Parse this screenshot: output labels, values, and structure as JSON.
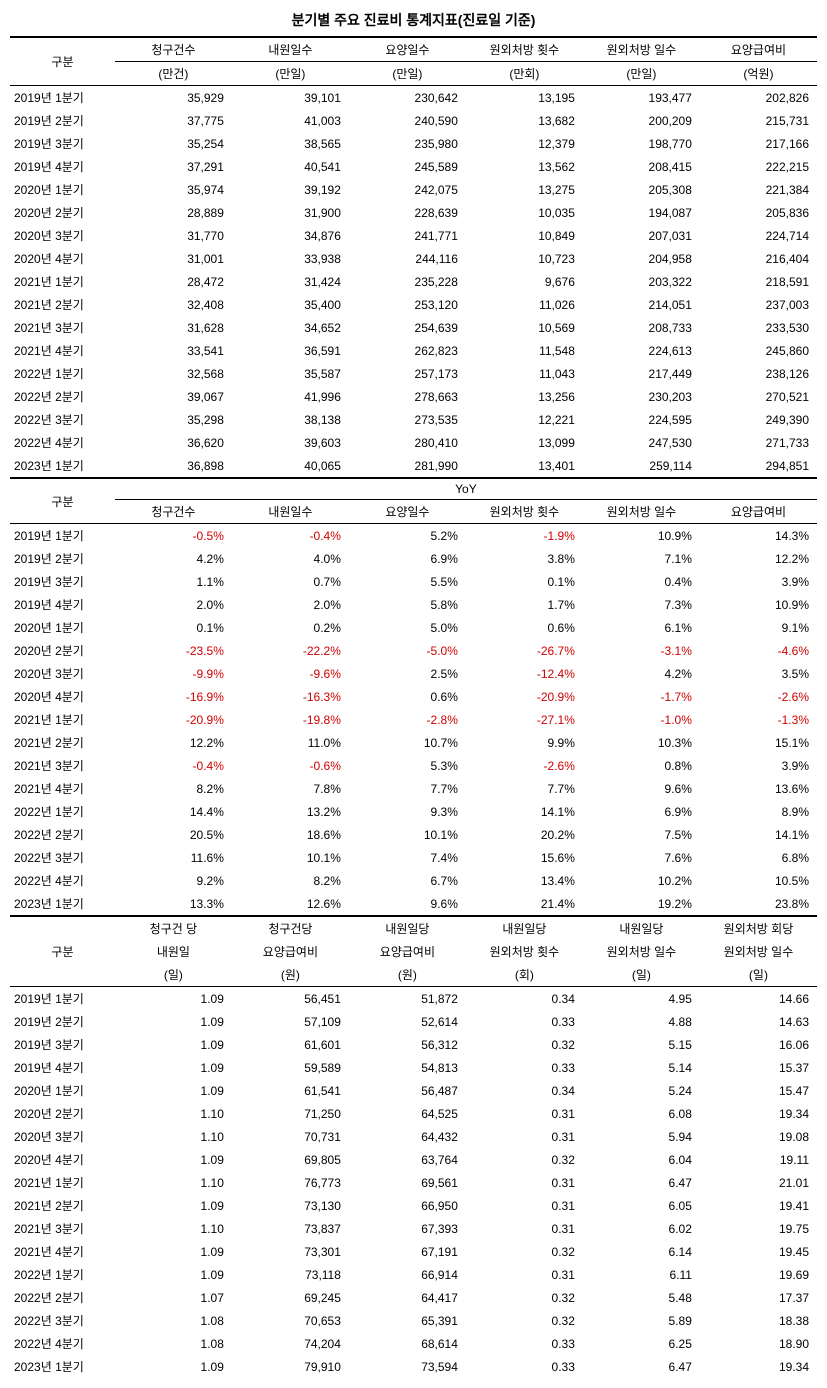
{
  "title": "분기별 주요 진료비 통계지표(진료일 기준)",
  "periods": [
    "2019년 1분기",
    "2019년 2분기",
    "2019년 3분기",
    "2019년 4분기",
    "2020년 1분기",
    "2020년 2분기",
    "2020년 3분기",
    "2020년 4분기",
    "2021년 1분기",
    "2021년 2분기",
    "2021년 3분기",
    "2021년 4분기",
    "2022년 1분기",
    "2022년 2분기",
    "2022년 3분기",
    "2022년 4분기",
    "2023년 1분기"
  ],
  "sec1": {
    "label": "구분",
    "cols": [
      [
        "청구건수",
        "(만건)"
      ],
      [
        "내원일수",
        "(만일)"
      ],
      [
        "요양일수",
        "(만일)"
      ],
      [
        "원외처방 횟수",
        "(만회)"
      ],
      [
        "원외처방 일수",
        "(만일)"
      ],
      [
        "요양급여비",
        "(억원)"
      ]
    ],
    "rows": [
      [
        "35,929",
        "39,101",
        "230,642",
        "13,195",
        "193,477",
        "202,826"
      ],
      [
        "37,775",
        "41,003",
        "240,590",
        "13,682",
        "200,209",
        "215,731"
      ],
      [
        "35,254",
        "38,565",
        "235,980",
        "12,379",
        "198,770",
        "217,166"
      ],
      [
        "37,291",
        "40,541",
        "245,589",
        "13,562",
        "208,415",
        "222,215"
      ],
      [
        "35,974",
        "39,192",
        "242,075",
        "13,275",
        "205,308",
        "221,384"
      ],
      [
        "28,889",
        "31,900",
        "228,639",
        "10,035",
        "194,087",
        "205,836"
      ],
      [
        "31,770",
        "34,876",
        "241,771",
        "10,849",
        "207,031",
        "224,714"
      ],
      [
        "31,001",
        "33,938",
        "244,116",
        "10,723",
        "204,958",
        "216,404"
      ],
      [
        "28,472",
        "31,424",
        "235,228",
        "9,676",
        "203,322",
        "218,591"
      ],
      [
        "32,408",
        "35,400",
        "253,120",
        "11,026",
        "214,051",
        "237,003"
      ],
      [
        "31,628",
        "34,652",
        "254,639",
        "10,569",
        "208,733",
        "233,530"
      ],
      [
        "33,541",
        "36,591",
        "262,823",
        "11,548",
        "224,613",
        "245,860"
      ],
      [
        "32,568",
        "35,587",
        "257,173",
        "11,043",
        "217,449",
        "238,126"
      ],
      [
        "39,067",
        "41,996",
        "278,663",
        "13,256",
        "230,203",
        "270,521"
      ],
      [
        "35,298",
        "38,138",
        "273,535",
        "12,221",
        "224,595",
        "249,390"
      ],
      [
        "36,620",
        "39,603",
        "280,410",
        "13,099",
        "247,530",
        "271,733"
      ],
      [
        "36,898",
        "40,065",
        "281,990",
        "13,401",
        "259,114",
        "294,851"
      ]
    ]
  },
  "sec2": {
    "label": "구분",
    "span_label": "YoY",
    "cols": [
      "청구건수",
      "내원일수",
      "요양일수",
      "원외처방 횟수",
      "원외처방 일수",
      "요양급여비"
    ],
    "rows": [
      [
        [
          "-0.5%",
          1
        ],
        [
          "-0.4%",
          1
        ],
        [
          "5.2%",
          0
        ],
        [
          "-1.9%",
          1
        ],
        [
          "10.9%",
          0
        ],
        [
          "14.3%",
          0
        ]
      ],
      [
        [
          "4.2%",
          0
        ],
        [
          "4.0%",
          0
        ],
        [
          "6.9%",
          0
        ],
        [
          "3.8%",
          0
        ],
        [
          "7.1%",
          0
        ],
        [
          "12.2%",
          0
        ]
      ],
      [
        [
          "1.1%",
          0
        ],
        [
          "0.7%",
          0
        ],
        [
          "5.5%",
          0
        ],
        [
          "0.1%",
          0
        ],
        [
          "0.4%",
          0
        ],
        [
          "3.9%",
          0
        ]
      ],
      [
        [
          "2.0%",
          0
        ],
        [
          "2.0%",
          0
        ],
        [
          "5.8%",
          0
        ],
        [
          "1.7%",
          0
        ],
        [
          "7.3%",
          0
        ],
        [
          "10.9%",
          0
        ]
      ],
      [
        [
          "0.1%",
          0
        ],
        [
          "0.2%",
          0
        ],
        [
          "5.0%",
          0
        ],
        [
          "0.6%",
          0
        ],
        [
          "6.1%",
          0
        ],
        [
          "9.1%",
          0
        ]
      ],
      [
        [
          "-23.5%",
          1
        ],
        [
          "-22.2%",
          1
        ],
        [
          "-5.0%",
          1
        ],
        [
          "-26.7%",
          1
        ],
        [
          "-3.1%",
          1
        ],
        [
          "-4.6%",
          1
        ]
      ],
      [
        [
          "-9.9%",
          1
        ],
        [
          "-9.6%",
          1
        ],
        [
          "2.5%",
          0
        ],
        [
          "-12.4%",
          1
        ],
        [
          "4.2%",
          0
        ],
        [
          "3.5%",
          0
        ]
      ],
      [
        [
          "-16.9%",
          1
        ],
        [
          "-16.3%",
          1
        ],
        [
          "0.6%",
          0
        ],
        [
          "-20.9%",
          1
        ],
        [
          "-1.7%",
          1
        ],
        [
          "-2.6%",
          1
        ]
      ],
      [
        [
          "-20.9%",
          1
        ],
        [
          "-19.8%",
          1
        ],
        [
          "-2.8%",
          1
        ],
        [
          "-27.1%",
          1
        ],
        [
          "-1.0%",
          1
        ],
        [
          "-1.3%",
          1
        ]
      ],
      [
        [
          "12.2%",
          0
        ],
        [
          "11.0%",
          0
        ],
        [
          "10.7%",
          0
        ],
        [
          "9.9%",
          0
        ],
        [
          "10.3%",
          0
        ],
        [
          "15.1%",
          0
        ]
      ],
      [
        [
          "-0.4%",
          1
        ],
        [
          "-0.6%",
          1
        ],
        [
          "5.3%",
          0
        ],
        [
          "-2.6%",
          1
        ],
        [
          "0.8%",
          0
        ],
        [
          "3.9%",
          0
        ]
      ],
      [
        [
          "8.2%",
          0
        ],
        [
          "7.8%",
          0
        ],
        [
          "7.7%",
          0
        ],
        [
          "7.7%",
          0
        ],
        [
          "9.6%",
          0
        ],
        [
          "13.6%",
          0
        ]
      ],
      [
        [
          "14.4%",
          0
        ],
        [
          "13.2%",
          0
        ],
        [
          "9.3%",
          0
        ],
        [
          "14.1%",
          0
        ],
        [
          "6.9%",
          0
        ],
        [
          "8.9%",
          0
        ]
      ],
      [
        [
          "20.5%",
          0
        ],
        [
          "18.6%",
          0
        ],
        [
          "10.1%",
          0
        ],
        [
          "20.2%",
          0
        ],
        [
          "7.5%",
          0
        ],
        [
          "14.1%",
          0
        ]
      ],
      [
        [
          "11.6%",
          0
        ],
        [
          "10.1%",
          0
        ],
        [
          "7.4%",
          0
        ],
        [
          "15.6%",
          0
        ],
        [
          "7.6%",
          0
        ],
        [
          "6.8%",
          0
        ]
      ],
      [
        [
          "9.2%",
          0
        ],
        [
          "8.2%",
          0
        ],
        [
          "6.7%",
          0
        ],
        [
          "13.4%",
          0
        ],
        [
          "10.2%",
          0
        ],
        [
          "10.5%",
          0
        ]
      ],
      [
        [
          "13.3%",
          0
        ],
        [
          "12.6%",
          0
        ],
        [
          "9.6%",
          0
        ],
        [
          "21.4%",
          0
        ],
        [
          "19.2%",
          0
        ],
        [
          "23.8%",
          0
        ]
      ]
    ]
  },
  "sec3": {
    "label": "구분",
    "cols": [
      [
        "청구건 당",
        "내원일",
        "(일)"
      ],
      [
        "청구건당",
        "요양급여비",
        "(원)"
      ],
      [
        "내원일당",
        "요양급여비",
        "(원)"
      ],
      [
        "내원일당",
        "원외처방 횟수",
        "(회)"
      ],
      [
        "내원일당",
        "원외처방 일수",
        "(일)"
      ],
      [
        "원외처방 회당",
        "원외처방 일수",
        "(일)"
      ]
    ],
    "rows": [
      [
        "1.09",
        "56,451",
        "51,872",
        "0.34",
        "4.95",
        "14.66"
      ],
      [
        "1.09",
        "57,109",
        "52,614",
        "0.33",
        "4.88",
        "14.63"
      ],
      [
        "1.09",
        "61,601",
        "56,312",
        "0.32",
        "5.15",
        "16.06"
      ],
      [
        "1.09",
        "59,589",
        "54,813",
        "0.33",
        "5.14",
        "15.37"
      ],
      [
        "1.09",
        "61,541",
        "56,487",
        "0.34",
        "5.24",
        "15.47"
      ],
      [
        "1.10",
        "71,250",
        "64,525",
        "0.31",
        "6.08",
        "19.34"
      ],
      [
        "1.10",
        "70,731",
        "64,432",
        "0.31",
        "5.94",
        "19.08"
      ],
      [
        "1.09",
        "69,805",
        "63,764",
        "0.32",
        "6.04",
        "19.11"
      ],
      [
        "1.10",
        "76,773",
        "69,561",
        "0.31",
        "6.47",
        "21.01"
      ],
      [
        "1.09",
        "73,130",
        "66,950",
        "0.31",
        "6.05",
        "19.41"
      ],
      [
        "1.10",
        "73,837",
        "67,393",
        "0.31",
        "6.02",
        "19.75"
      ],
      [
        "1.09",
        "73,301",
        "67,191",
        "0.32",
        "6.14",
        "19.45"
      ],
      [
        "1.09",
        "73,118",
        "66,914",
        "0.31",
        "6.11",
        "19.69"
      ],
      [
        "1.07",
        "69,245",
        "64,417",
        "0.32",
        "5.48",
        "17.37"
      ],
      [
        "1.08",
        "70,653",
        "65,391",
        "0.32",
        "5.89",
        "18.38"
      ],
      [
        "1.08",
        "74,204",
        "68,614",
        "0.33",
        "6.25",
        "18.90"
      ],
      [
        "1.09",
        "79,910",
        "73,594",
        "0.33",
        "6.47",
        "19.34"
      ]
    ]
  }
}
